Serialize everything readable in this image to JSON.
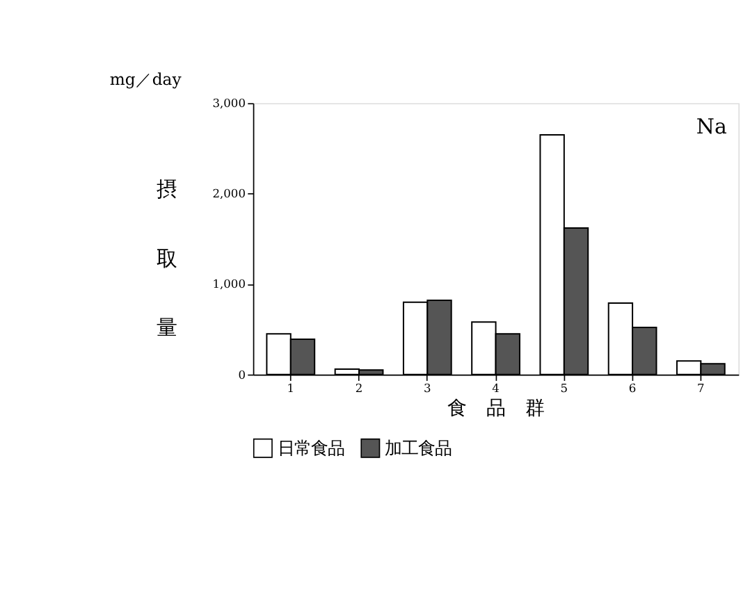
{
  "chart_data": {
    "type": "bar",
    "title": "mg／day",
    "xlabel": "食　品　群",
    "ylabel": "摂取量",
    "categories": [
      "1",
      "2",
      "3",
      "4",
      "5",
      "6",
      "7"
    ],
    "series": [
      {
        "name": "日常食品",
        "color": "#ffffff",
        "values": [
          450,
          60,
          800,
          580,
          2650,
          790,
          150
        ]
      },
      {
        "name": "加工食品",
        "color": "#555555",
        "values": [
          390,
          50,
          820,
          450,
          1620,
          520,
          120
        ]
      }
    ],
    "ylim": [
      0,
      3000
    ],
    "yticks": [
      {
        "value": 0,
        "label": "0"
      },
      {
        "value": 1000,
        "label": "1,000"
      },
      {
        "value": 2000,
        "label": "2,000"
      },
      {
        "value": 3000,
        "label": "3,000"
      }
    ],
    "annotations": [
      "Na"
    ],
    "grid": false,
    "legend": "bottom"
  }
}
